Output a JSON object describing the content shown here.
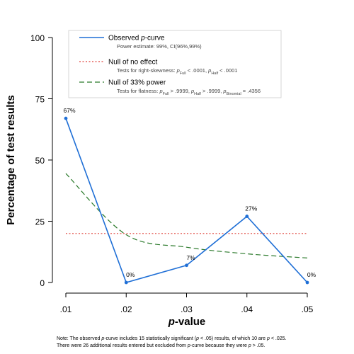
{
  "chart_data": {
    "type": "line",
    "xlabel_prefix": "p",
    "xlabel_suffix": "-value",
    "ylabel": "Percentage of test results",
    "categories": [
      ".01",
      ".02",
      ".03",
      ".04",
      ".05"
    ],
    "x": [
      0.01,
      0.02,
      0.03,
      0.04,
      0.05
    ],
    "ylim": [
      0,
      100
    ],
    "yticks": [
      0,
      25,
      50,
      75,
      100
    ],
    "grid": false,
    "legend_placement": "top",
    "series": [
      {
        "name": "Observed p-curve",
        "style": "solid",
        "color": "#1f6fd6",
        "values": [
          67,
          0,
          7,
          27,
          0
        ],
        "data_labels": [
          "67%",
          "0%",
          "7%",
          "27%",
          "0%"
        ]
      },
      {
        "name": "Null of no effect",
        "style": "dotted",
        "color": "#e0413a",
        "values": [
          20,
          20,
          20,
          20,
          20
        ]
      },
      {
        "name": "Null of 33% power",
        "style": "dashed",
        "color": "#2b7a2b",
        "values": [
          44.5,
          19.5,
          14.4,
          11.7,
          10.0
        ]
      }
    ]
  },
  "legend": {
    "items": [
      {
        "name_pre": "Observed ",
        "name_italic": "p",
        "name_post": "-curve",
        "sub": [
          {
            "t": "Power estimate: 99%, CI(96%,99%)"
          }
        ]
      },
      {
        "name_pre": "Null of no effect",
        "sub": [
          {
            "t": "Tests for right-skewness: "
          },
          {
            "t": "p",
            "i": true
          },
          {
            "t": "Full",
            "s": true
          },
          {
            "t": " < .0001,  "
          },
          {
            "t": "p",
            "i": true
          },
          {
            "t": "Half",
            "s": true
          },
          {
            "t": " < .0001"
          }
        ]
      },
      {
        "name_pre": "Null of 33% power",
        "sub": [
          {
            "t": "Tests for flatness: "
          },
          {
            "t": "p",
            "i": true
          },
          {
            "t": "Full",
            "s": true
          },
          {
            "t": " > .9999,  "
          },
          {
            "t": "p",
            "i": true
          },
          {
            "t": "Half",
            "s": true
          },
          {
            "t": " > .9999,  "
          },
          {
            "t": "p",
            "i": true
          },
          {
            "t": "Binomial",
            "s": true
          },
          {
            "t": " = .4356"
          }
        ]
      }
    ]
  },
  "note": {
    "line1": [
      {
        "t": "Note: The observed "
      },
      {
        "t": "p",
        "i": true
      },
      {
        "t": "-curve includes 15 statistically significant ("
      },
      {
        "t": "p",
        "i": true
      },
      {
        "t": " < .05) results, of which 10 are "
      },
      {
        "t": "p",
        "i": true
      },
      {
        "t": " < .025."
      }
    ],
    "line2": [
      {
        "t": "There were 26 additional results entered but excluded from "
      },
      {
        "t": "p",
        "i": true
      },
      {
        "t": "-curve because they were "
      },
      {
        "t": "p",
        "i": true
      },
      {
        "t": " > .05."
      }
    ]
  }
}
